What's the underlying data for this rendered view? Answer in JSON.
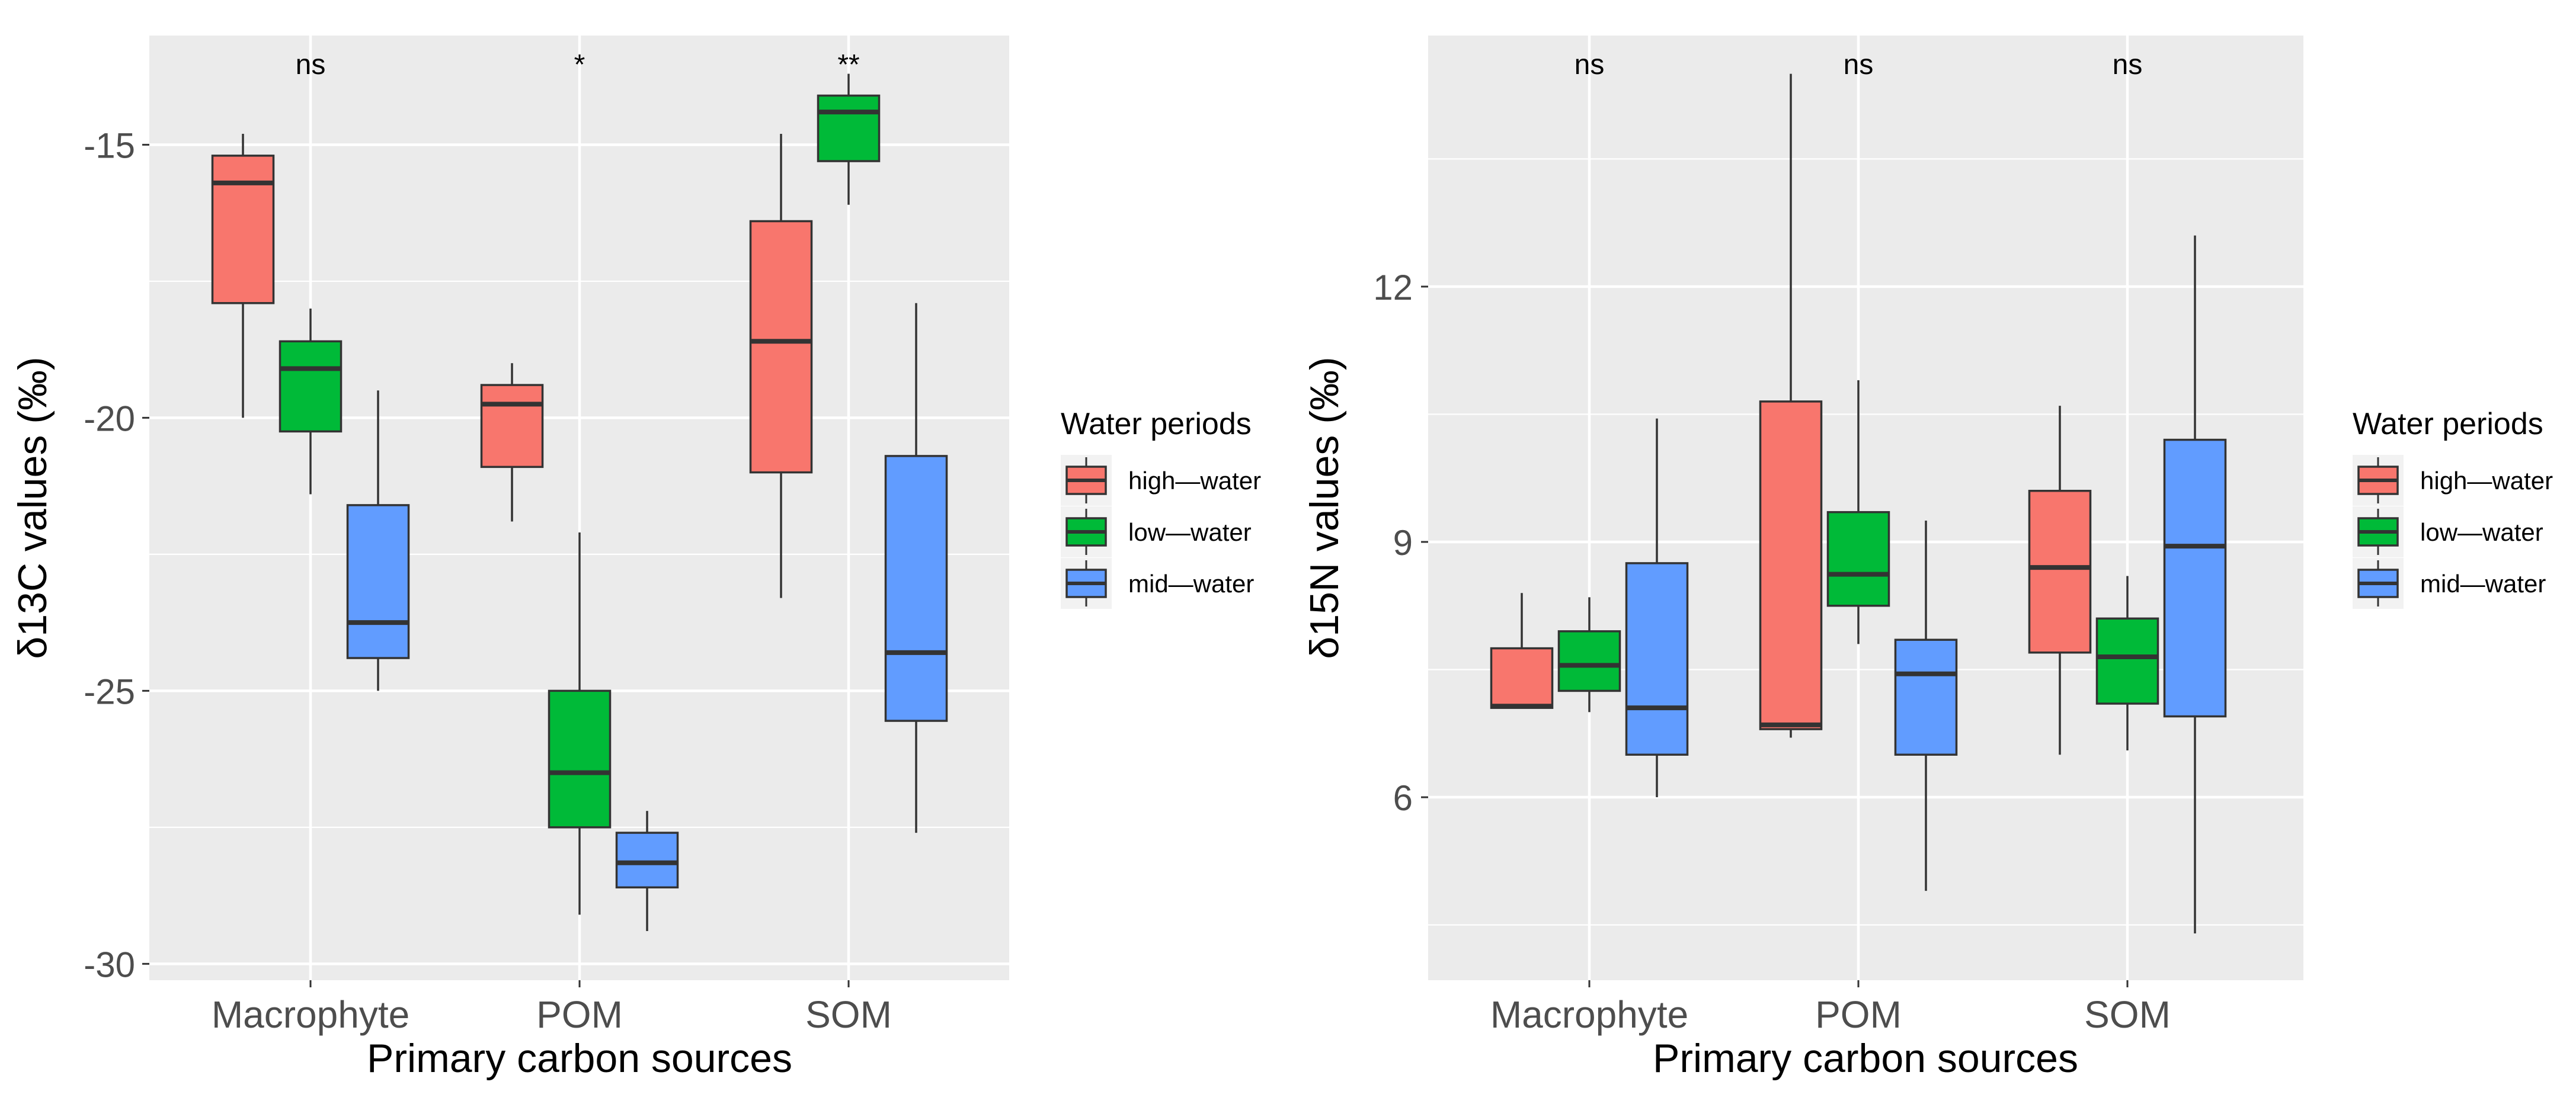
{
  "chart_data": [
    {
      "type": "boxplot",
      "ylabel": "δ13C values (‰)",
      "xlabel": "Primary carbon sources",
      "categories": [
        "Macrophyte",
        "POM",
        "SOM"
      ],
      "ylim": [
        -30.3,
        -13.0
      ],
      "yticks": [
        -30,
        -25,
        -20,
        -15
      ],
      "ytick_labels": [
        "-30",
        "-25",
        "-20",
        "-15"
      ],
      "significance": [
        "ns",
        "*",
        "**"
      ],
      "series": [
        {
          "name": "high—water",
          "color": "#F8766D",
          "boxes": [
            {
              "min": -20.0,
              "q1": -17.9,
              "median": -15.7,
              "q3": -15.2,
              "max": -14.8
            },
            {
              "min": -21.9,
              "q1": -20.9,
              "median": -19.75,
              "q3": -19.4,
              "max": -19.0
            },
            {
              "min": -23.3,
              "q1": -21.0,
              "median": -18.6,
              "q3": -16.4,
              "max": -14.8
            }
          ]
        },
        {
          "name": "low—water",
          "color": "#00BA38",
          "boxes": [
            {
              "min": -21.4,
              "q1": -20.25,
              "median": -19.1,
              "q3": -18.6,
              "max": -18.0
            },
            {
              "min": -29.1,
              "q1": -27.5,
              "median": -26.5,
              "q3": -25.0,
              "max": -22.1
            },
            {
              "min": -16.1,
              "q1": -15.3,
              "median": -14.4,
              "q3": -14.1,
              "max": -13.7
            }
          ]
        },
        {
          "name": "mid—water",
          "color": "#619CFF",
          "boxes": [
            {
              "min": -25.0,
              "q1": -24.4,
              "median": -23.75,
              "q3": -21.6,
              "max": -19.5
            },
            {
              "min": -29.4,
              "q1": -28.6,
              "median": -28.15,
              "q3": -27.6,
              "max": -27.2
            },
            {
              "min": -27.6,
              "q1": -25.55,
              "median": -24.3,
              "q3": -20.7,
              "max": -17.9
            }
          ]
        }
      ]
    },
    {
      "type": "boxplot",
      "ylabel": "δ15N values (‰)",
      "xlabel": "Primary carbon sources",
      "categories": [
        "Macrophyte",
        "POM",
        "SOM"
      ],
      "ylim": [
        3.85,
        14.95
      ],
      "yticks": [
        6,
        9,
        12
      ],
      "ytick_labels": [
        "6",
        "9",
        "12"
      ],
      "significance": [
        "ns",
        "ns",
        "ns"
      ],
      "series": [
        {
          "name": "high—water",
          "color": "#F8766D",
          "boxes": [
            {
              "min": 7.05,
              "q1": 7.05,
              "median": 7.07,
              "q3": 7.75,
              "max": 8.4
            },
            {
              "min": 6.7,
              "q1": 6.8,
              "median": 6.85,
              "q3": 10.65,
              "max": 14.5
            },
            {
              "min": 6.5,
              "q1": 7.7,
              "median": 8.7,
              "q3": 9.6,
              "max": 10.6
            }
          ]
        },
        {
          "name": "low—water",
          "color": "#00BA38",
          "boxes": [
            {
              "min": 7.0,
              "q1": 7.25,
              "median": 7.55,
              "q3": 7.95,
              "max": 8.35
            },
            {
              "min": 7.8,
              "q1": 8.25,
              "median": 8.62,
              "q3": 9.35,
              "max": 10.9
            },
            {
              "min": 6.55,
              "q1": 7.1,
              "median": 7.65,
              "q3": 8.1,
              "max": 8.6
            }
          ]
        },
        {
          "name": "mid—water",
          "color": "#619CFF",
          "boxes": [
            {
              "min": 6.0,
              "q1": 6.5,
              "median": 7.05,
              "q3": 8.75,
              "max": 10.45
            },
            {
              "min": 4.9,
              "q1": 6.5,
              "median": 7.45,
              "q3": 7.85,
              "max": 9.25
            },
            {
              "min": 4.4,
              "q1": 6.95,
              "median": 8.95,
              "q3": 10.2,
              "max": 12.6
            }
          ]
        }
      ]
    }
  ],
  "legend": {
    "title": "Water periods",
    "items": [
      "high—water",
      "low—water",
      "mid—water"
    ]
  }
}
